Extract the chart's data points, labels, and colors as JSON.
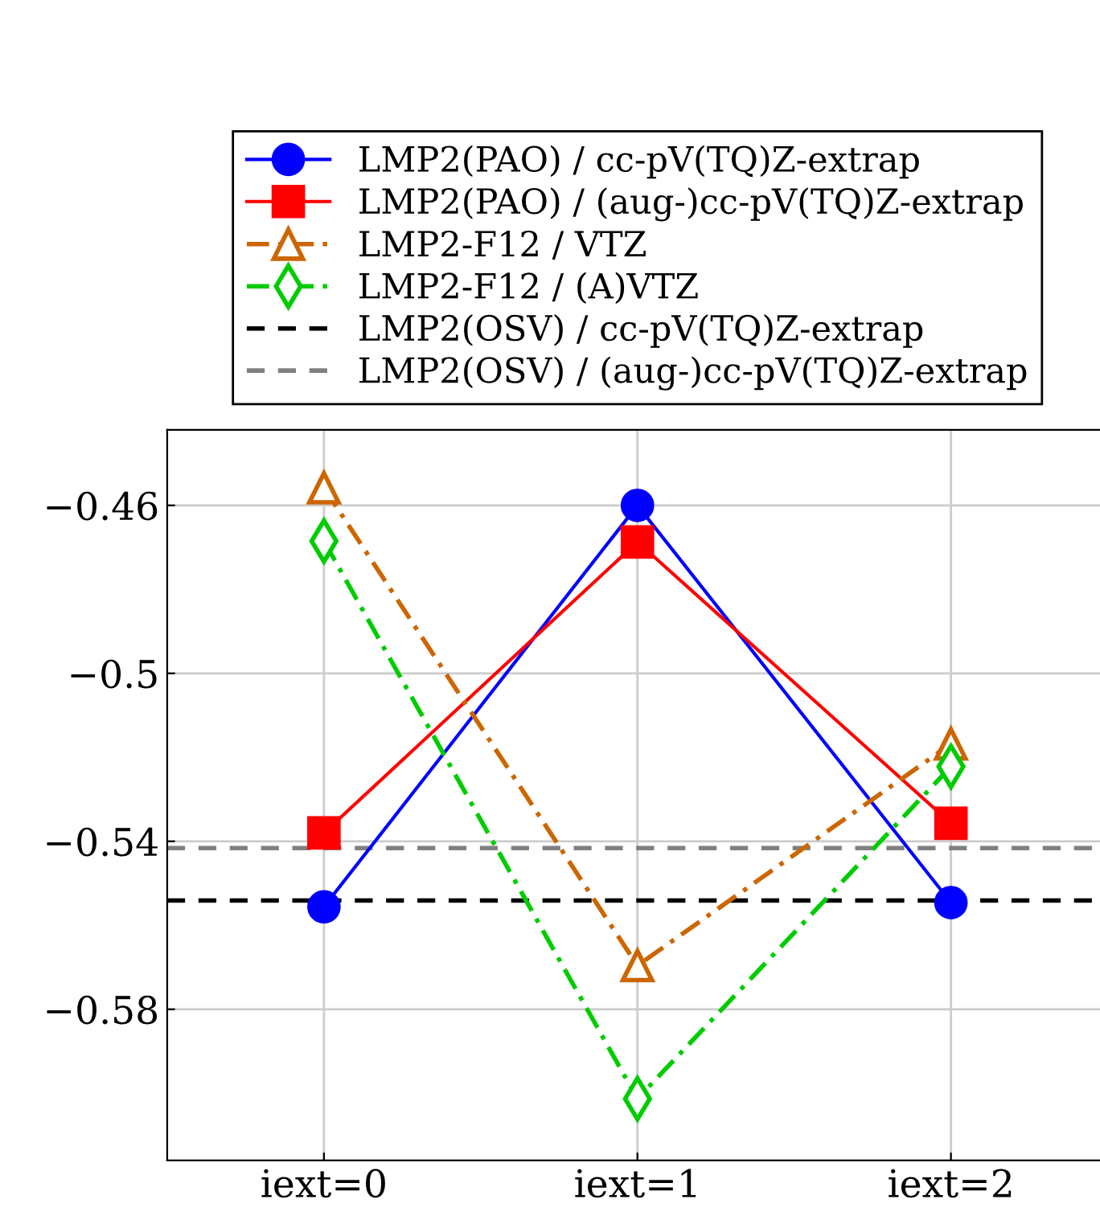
{
  "chart_data": {
    "type": "line",
    "categories": [
      "iext=0",
      "iext=1",
      "iext=2"
    ],
    "series": [
      {
        "name": "LMP2(PAO) / cc-pV(TQ)Z-extrap",
        "color": "#0000ff",
        "marker": "circle",
        "line_style": "solid",
        "values": [
          -0.5556,
          -0.46,
          -0.5546
        ]
      },
      {
        "name": "LMP2(PAO) / (aug-)cc-pV(TQ)Z-extrap",
        "color": "#ff0000",
        "marker": "square",
        "line_style": "solid",
        "values": [
          -0.538,
          -0.4687,
          -0.5357
        ]
      },
      {
        "name": "LMP2-F12 / VTZ",
        "color": "#cc6600",
        "marker": "triangle",
        "line_style": "dashdot",
        "values": [
          -0.4558,
          -0.5696,
          -0.5168
        ]
      },
      {
        "name": "LMP2-F12 / (A)VTZ",
        "color": "#00cc00",
        "marker": "diamond",
        "line_style": "dashdot",
        "values": [
          -0.4685,
          -0.6013,
          -0.5222
        ]
      }
    ],
    "ref_lines": [
      {
        "axis": "y",
        "value": -0.5541,
        "label": "LMP2(OSV) / cc-pV(TQ)Z-extrap",
        "color": "#000000",
        "line_style": "dashed"
      },
      {
        "axis": "y",
        "value": -0.5416,
        "label": "LMP2(OSV) / (aug-)cc-pV(TQ)Z-extrap",
        "color": "#808080",
        "line_style": "dashed"
      }
    ],
    "ylim": [
      -0.616,
      -0.442
    ],
    "yticks": [
      {
        "value": -0.46,
        "label": "−0.46"
      },
      {
        "value": -0.5,
        "label": "−0.5"
      },
      {
        "value": -0.54,
        "label": "−0.54"
      },
      {
        "value": -0.58,
        "label": "−0.58"
      }
    ],
    "grid": true,
    "legend": "top"
  }
}
